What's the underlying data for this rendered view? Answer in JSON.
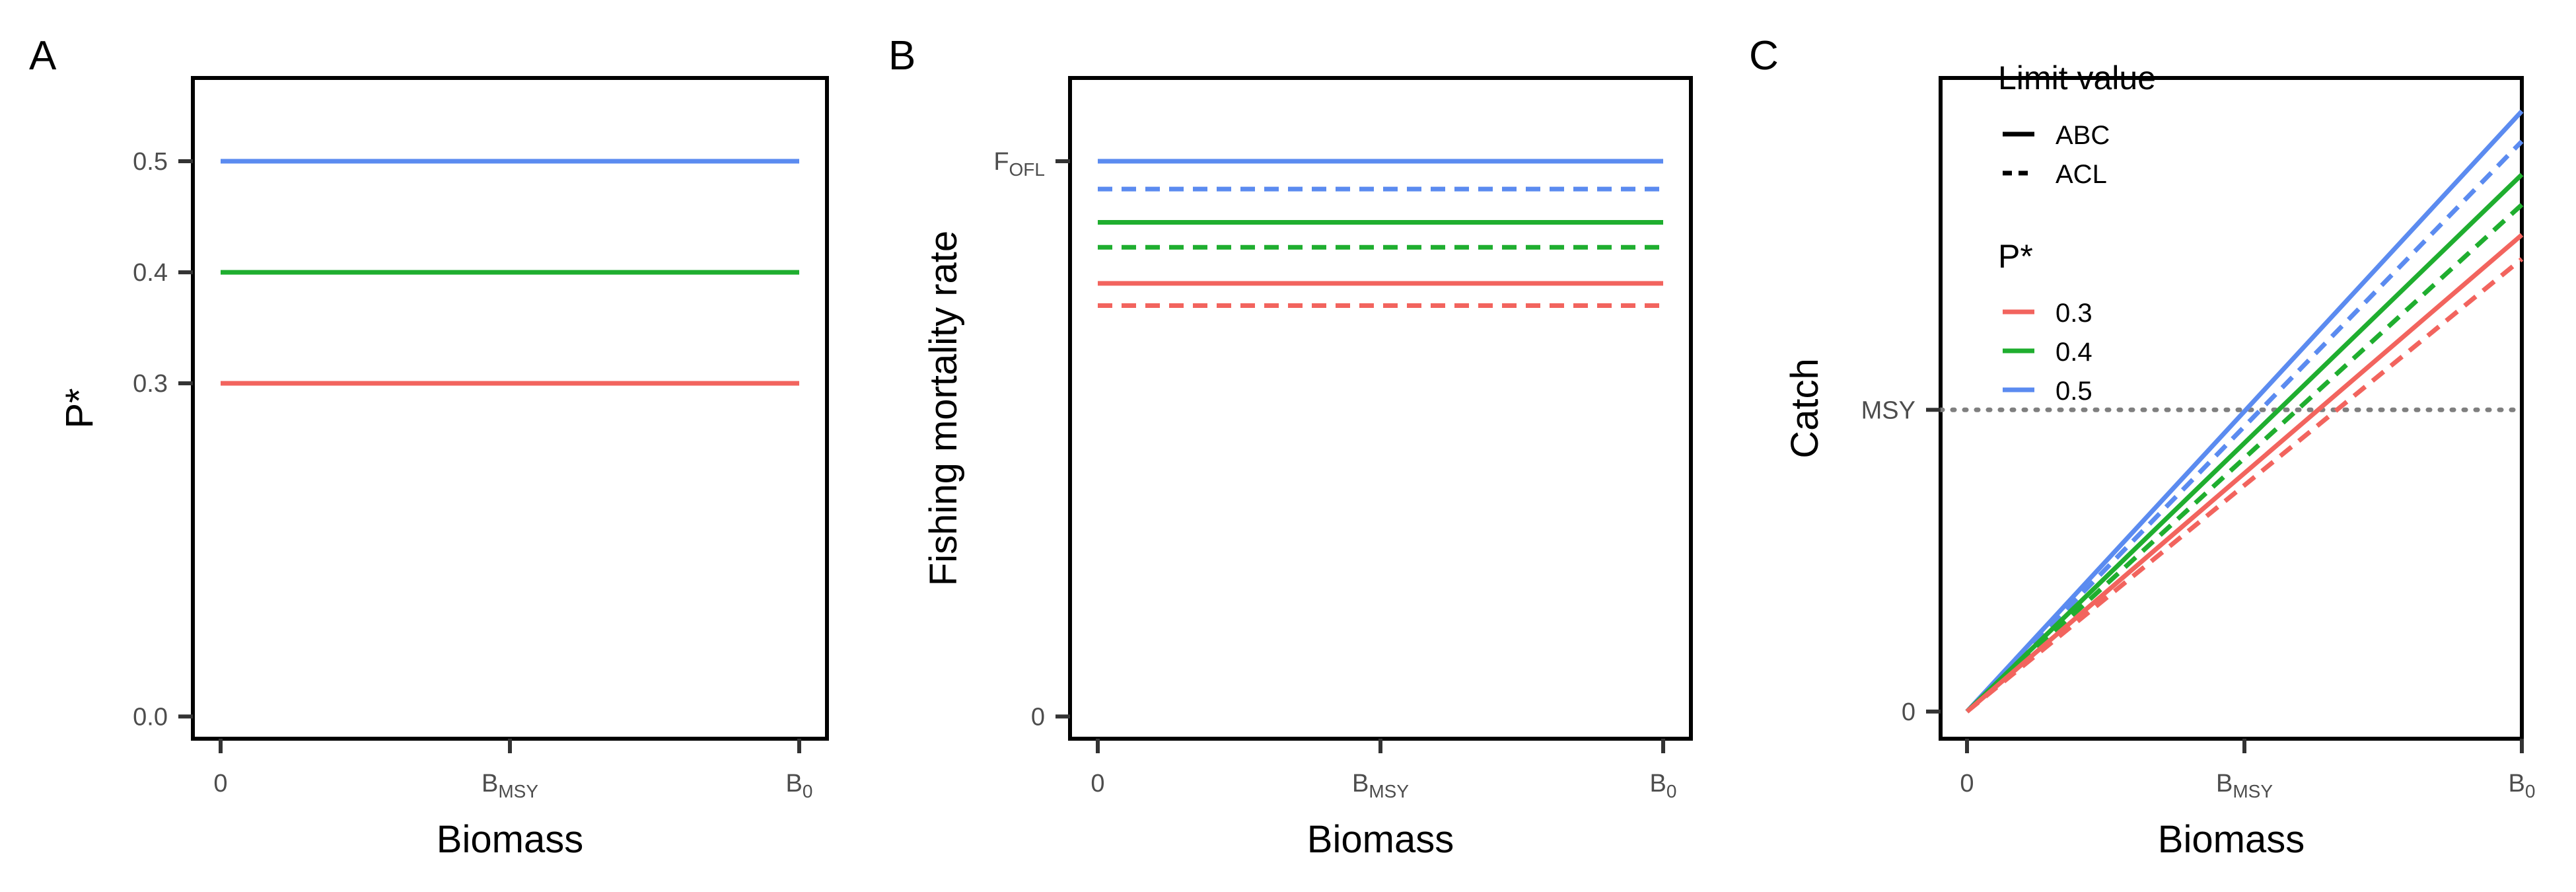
{
  "colors": {
    "p03": "#F2645E",
    "p04": "#1FAE2F",
    "p05": "#5B8BF0",
    "reference_line": "#7f7f7f"
  },
  "panels": [
    {
      "tag": "A"
    },
    {
      "tag": "B"
    },
    {
      "tag": "C"
    }
  ],
  "legend": {
    "limit_title": "Limit value",
    "limit_items": [
      {
        "label": "ABC",
        "linestyle": "solid"
      },
      {
        "label": "ACL",
        "linestyle": "dashed"
      }
    ],
    "pstar_title": "P*",
    "pstar_items": [
      {
        "label": "0.3",
        "color": "#F2645E"
      },
      {
        "label": "0.4",
        "color": "#1FAE2F"
      },
      {
        "label": "0.5",
        "color": "#5B8BF0"
      }
    ]
  },
  "chart_data": [
    {
      "type": "line",
      "panel": "A",
      "xlabel": "Biomass",
      "ylabel": "P*",
      "xticks": [
        {
          "main": "0",
          "sub": ""
        },
        {
          "main": "B",
          "sub": "MSY"
        },
        {
          "main": "B",
          "sub": "0"
        }
      ],
      "yticks": [
        {
          "value": 0.0,
          "main": "0.0",
          "sub": ""
        },
        {
          "value": 0.3,
          "main": "0.3",
          "sub": ""
        },
        {
          "value": 0.4,
          "main": "0.4",
          "sub": ""
        },
        {
          "value": 0.5,
          "main": "0.5",
          "sub": ""
        }
      ],
      "xlim": [
        0,
        1
      ],
      "ylim": [
        -0.02,
        0.575
      ],
      "series": [
        {
          "name": "0.3",
          "limit": "ABC",
          "color": "#F2645E",
          "dash": false,
          "x": [
            0,
            1
          ],
          "y": [
            0.3,
            0.3
          ]
        },
        {
          "name": "0.4",
          "limit": "ABC",
          "color": "#1FAE2F",
          "dash": false,
          "x": [
            0,
            1
          ],
          "y": [
            0.4,
            0.4
          ]
        },
        {
          "name": "0.5",
          "limit": "ABC",
          "color": "#5B8BF0",
          "dash": false,
          "x": [
            0,
            1
          ],
          "y": [
            0.5,
            0.5
          ]
        }
      ]
    },
    {
      "type": "line",
      "panel": "B",
      "xlabel": "Biomass",
      "ylabel": "Fishing mortality rate",
      "xticks": [
        {
          "main": "0",
          "sub": ""
        },
        {
          "main": "B",
          "sub": "MSY"
        },
        {
          "main": "B",
          "sub": "0"
        }
      ],
      "yticks": [
        {
          "value": 0,
          "main": "0",
          "sub": ""
        },
        {
          "value": 1,
          "main": "F",
          "sub": "OFL"
        }
      ],
      "xlim": [
        0,
        1
      ],
      "ylim": [
        -0.04,
        1.15
      ],
      "series": [
        {
          "name": "0.5",
          "limit": "ABC",
          "color": "#5B8BF0",
          "dash": false,
          "x": [
            0,
            1
          ],
          "y": [
            1.0,
            1.0
          ]
        },
        {
          "name": "0.5",
          "limit": "ACL",
          "color": "#5B8BF0",
          "dash": true,
          "x": [
            0,
            1
          ],
          "y": [
            0.95,
            0.95
          ]
        },
        {
          "name": "0.4",
          "limit": "ABC",
          "color": "#1FAE2F",
          "dash": false,
          "x": [
            0,
            1
          ],
          "y": [
            0.89,
            0.89
          ]
        },
        {
          "name": "0.4",
          "limit": "ACL",
          "color": "#1FAE2F",
          "dash": true,
          "x": [
            0,
            1
          ],
          "y": [
            0.845,
            0.845
          ]
        },
        {
          "name": "0.3",
          "limit": "ABC",
          "color": "#F2645E",
          "dash": false,
          "x": [
            0,
            1
          ],
          "y": [
            0.78,
            0.78
          ]
        },
        {
          "name": "0.3",
          "limit": "ACL",
          "color": "#F2645E",
          "dash": true,
          "x": [
            0,
            1
          ],
          "y": [
            0.74,
            0.74
          ]
        }
      ]
    },
    {
      "type": "line",
      "panel": "C",
      "xlabel": "Biomass",
      "ylabel": "Catch",
      "xticks": [
        {
          "main": "0",
          "sub": ""
        },
        {
          "main": "B",
          "sub": "MSY"
        },
        {
          "main": "B",
          "sub": "0"
        }
      ],
      "yticks": [
        {
          "value": 0,
          "main": "0",
          "sub": ""
        },
        {
          "value": 1,
          "main": "MSY",
          "sub": ""
        }
      ],
      "xlim": [
        0,
        1
      ],
      "ylim": [
        -0.09,
        2.1
      ],
      "hline": {
        "y": 1,
        "style": "dotted"
      },
      "series": [
        {
          "name": "0.5",
          "limit": "ABC",
          "color": "#5B8BF0",
          "dash": false,
          "x": [
            0,
            1
          ],
          "y": [
            0,
            1.99
          ]
        },
        {
          "name": "0.5",
          "limit": "ACL",
          "color": "#5B8BF0",
          "dash": true,
          "x": [
            0,
            1
          ],
          "y": [
            0,
            1.89
          ]
        },
        {
          "name": "0.4",
          "limit": "ABC",
          "color": "#1FAE2F",
          "dash": false,
          "x": [
            0,
            1
          ],
          "y": [
            0,
            1.78
          ]
        },
        {
          "name": "0.4",
          "limit": "ACL",
          "color": "#1FAE2F",
          "dash": true,
          "x": [
            0,
            1
          ],
          "y": [
            0,
            1.68
          ]
        },
        {
          "name": "0.3",
          "limit": "ABC",
          "color": "#F2645E",
          "dash": false,
          "x": [
            0,
            1
          ],
          "y": [
            0,
            1.58
          ]
        },
        {
          "name": "0.3",
          "limit": "ACL",
          "color": "#F2645E",
          "dash": true,
          "x": [
            0,
            1
          ],
          "y": [
            0,
            1.5
          ]
        }
      ]
    }
  ]
}
